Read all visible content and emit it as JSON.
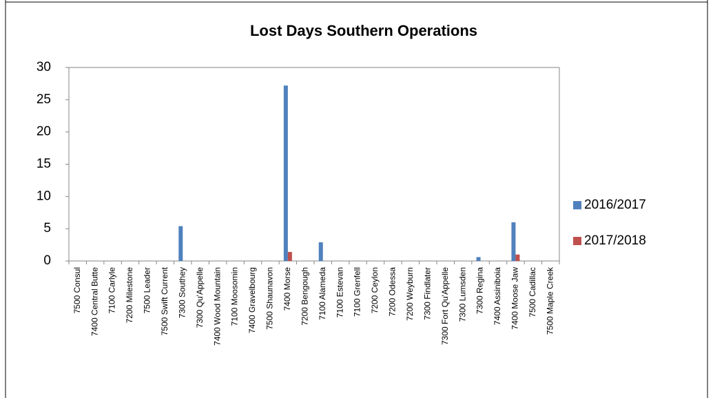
{
  "chart_data": {
    "type": "bar",
    "title": "Lost Days Southern Operations",
    "categories": [
      "7500 Consul",
      "7400 Central Butte",
      "7100 Carlyle",
      "7200 Milestone",
      "7500 Leader",
      "7500 Swift Current",
      "7300 Southey",
      "7300 Qu'Appelle",
      "7400 Wood Mountain",
      "7100 Moosomin",
      "7400 Gravelbourg",
      "7500 Shaunavon",
      "7400 Morse",
      "7200 Bengough",
      "7100 Alameda",
      "7100 Estevan",
      "7100 Grenfell",
      "7200 Ceylon",
      "7200 Odessa",
      "7200 Weyburn",
      "7300 Findlater",
      "7300 Fort Qu'Appelle",
      "7300 Lumsden",
      "7300 Regina",
      "7400 Assiniboia",
      "7400 Moose Jaw",
      "7500 Cadillac",
      "7500 Maple Creek"
    ],
    "series": [
      {
        "name": "2016/2017",
        "color": "#4f81bd",
        "values": [
          0,
          0,
          0,
          0,
          0,
          0,
          5.4,
          0,
          0,
          0,
          0,
          0,
          27.2,
          0,
          2.9,
          0,
          0,
          0,
          0,
          0,
          0,
          0,
          0,
          0.6,
          0,
          6,
          0,
          0
        ]
      },
      {
        "name": "2017/2018",
        "color": "#c0504d",
        "values": [
          0,
          0,
          0,
          0,
          0,
          0,
          0,
          0,
          0,
          0,
          0,
          0,
          1.4,
          0,
          0,
          0,
          0,
          0,
          0,
          0,
          0,
          0,
          0,
          0,
          0,
          1,
          0,
          0
        ]
      }
    ],
    "ylim": [
      0,
      30
    ],
    "yticks": [
      0,
      5,
      10,
      15,
      20,
      25,
      30
    ],
    "grid": false,
    "legend": "right"
  }
}
